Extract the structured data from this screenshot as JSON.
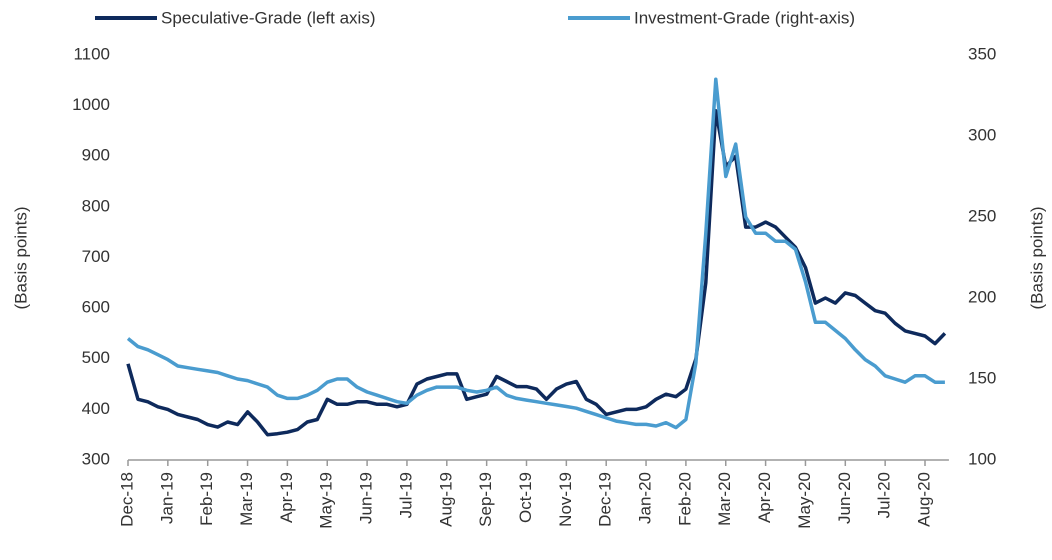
{
  "chart_data": {
    "type": "line",
    "categories": [
      "Dec-18",
      null,
      null,
      null,
      "Jan-19",
      null,
      null,
      null,
      "Feb-19",
      null,
      null,
      null,
      "Mar-19",
      null,
      null,
      null,
      "Apr-19",
      null,
      null,
      null,
      "May-19",
      null,
      null,
      null,
      "Jun-19",
      null,
      null,
      null,
      "Jul-19",
      null,
      null,
      null,
      "Aug-19",
      null,
      null,
      null,
      "Sep-19",
      null,
      null,
      null,
      "Oct-19",
      null,
      null,
      null,
      "Nov-19",
      null,
      null,
      null,
      "Dec-19",
      null,
      null,
      null,
      "Jan-20",
      null,
      null,
      null,
      "Feb-20",
      null,
      null,
      null,
      "Mar-20",
      null,
      null,
      null,
      "Apr-20",
      null,
      null,
      null,
      "May-20",
      null,
      null,
      null,
      "Jun-20",
      null,
      null,
      null,
      "Jul-20",
      null,
      null,
      null,
      "Aug-20",
      null,
      null
    ],
    "series": [
      {
        "name": "Speculative-Grade (left axis)",
        "color": "#0e2a5c",
        "axis": "y",
        "values": [
          490,
          420,
          415,
          405,
          400,
          390,
          385,
          380,
          370,
          365,
          375,
          370,
          395,
          375,
          350,
          352,
          355,
          360,
          375,
          380,
          420,
          410,
          410,
          415,
          415,
          410,
          410,
          405,
          410,
          450,
          460,
          465,
          470,
          470,
          420,
          425,
          430,
          465,
          455,
          445,
          445,
          440,
          420,
          440,
          450,
          455,
          420,
          410,
          390,
          395,
          400,
          400,
          405,
          420,
          430,
          425,
          440,
          500,
          650,
          990,
          880,
          900,
          760,
          760,
          770,
          760,
          740,
          720,
          680,
          610,
          620,
          610,
          630,
          625,
          610,
          595,
          590,
          570,
          555,
          550,
          545,
          530,
          550
        ]
      },
      {
        "name": "Investment-Grade (right-axis)",
        "color": "#4a9ccf",
        "axis": "y2",
        "values": [
          175,
          170,
          168,
          165,
          162,
          158,
          157,
          156,
          155,
          154,
          152,
          150,
          149,
          147,
          145,
          140,
          138,
          138,
          140,
          143,
          148,
          150,
          150,
          145,
          142,
          140,
          138,
          136,
          135,
          140,
          143,
          145,
          145,
          145,
          143,
          142,
          143,
          145,
          140,
          138,
          137,
          136,
          135,
          134,
          133,
          132,
          130,
          128,
          126,
          124,
          123,
          122,
          122,
          121,
          123,
          120,
          125,
          160,
          240,
          335,
          275,
          295,
          250,
          240,
          240,
          235,
          235,
          230,
          210,
          185,
          185,
          180,
          175,
          168,
          162,
          158,
          152,
          150,
          148,
          152,
          152,
          148,
          148
        ]
      }
    ],
    "ylabel": "(Basis points)",
    "y2label": "(Basis points)",
    "ylim": [
      300,
      1100
    ],
    "yticks": [
      300,
      400,
      500,
      600,
      700,
      800,
      900,
      1000,
      1100
    ],
    "y2lim": [
      100,
      350
    ],
    "y2ticks": [
      100,
      150,
      200,
      250,
      300,
      350
    ],
    "legend": "top",
    "grid": false
  }
}
